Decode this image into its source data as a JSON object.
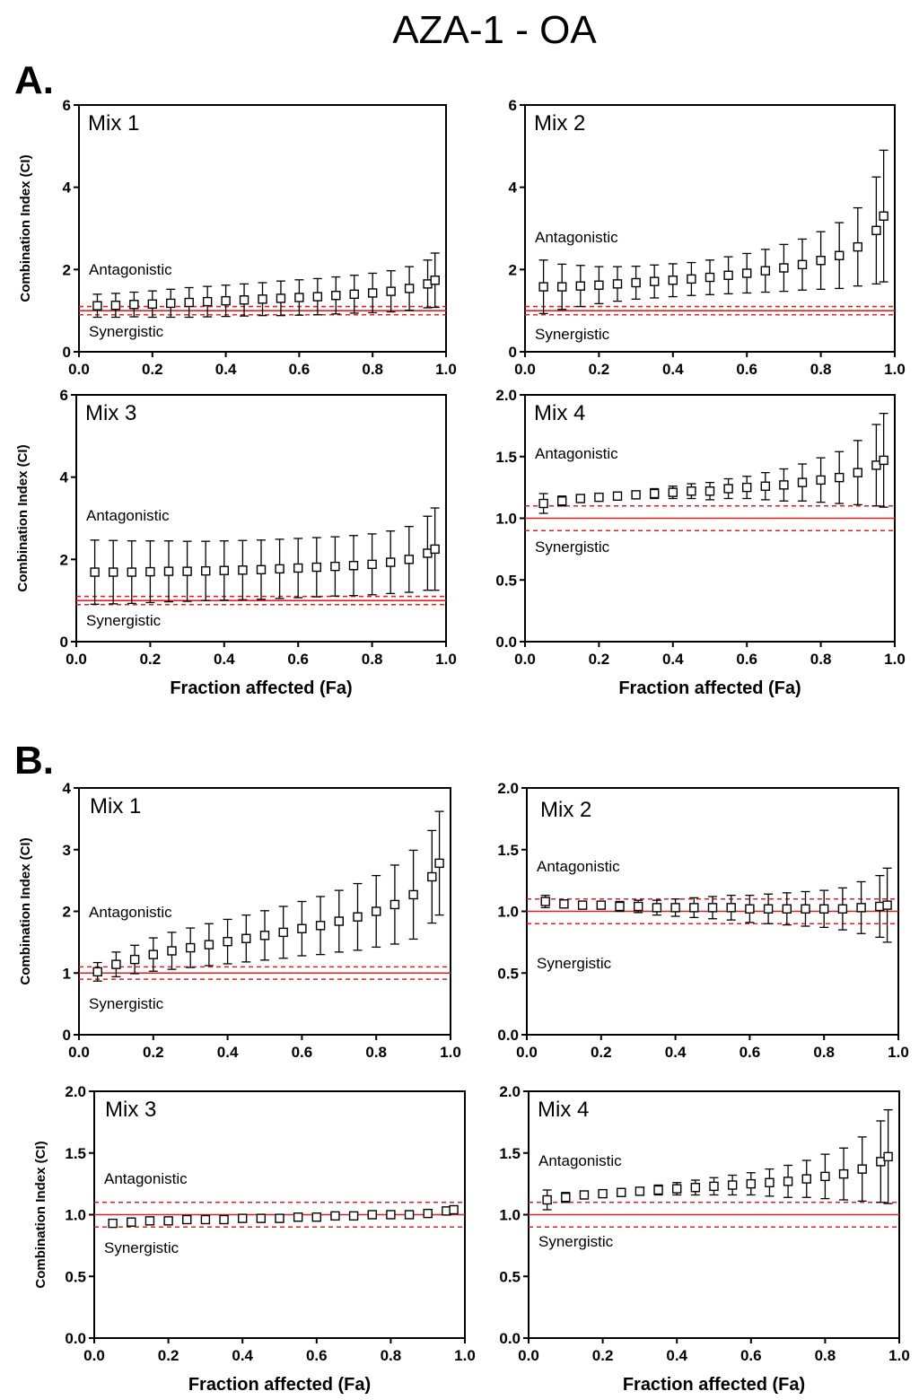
{
  "figure": {
    "title": "AZA-1 - OA",
    "section_a_label": "A.",
    "section_b_label": "B."
  },
  "colors": {
    "reference_line": "#e02020",
    "axis": "#000000",
    "marker_fill": "#ffffff"
  },
  "chart_data": [
    {
      "id": "A1",
      "section": "A",
      "type": "scatter",
      "title": "Mix 1",
      "xlabel": "",
      "ylabel": "Combination Index (CI)",
      "xlim": [
        0,
        1.0
      ],
      "ylim": [
        0,
        6
      ],
      "xticks": [
        "0.0",
        "0.2",
        "0.4",
        "0.6",
        "0.8",
        "1.0"
      ],
      "yticks": [
        "0",
        "2",
        "4",
        "6"
      ],
      "ytick_values": [
        0,
        2,
        4,
        6
      ],
      "antagonistic_label": "Antagonistic",
      "synergistic_label": "Synergistic",
      "reference_lines": {
        "additive": 1.0,
        "lower": 0.9,
        "upper": 1.1
      },
      "x": [
        0.05,
        0.1,
        0.15,
        0.2,
        0.25,
        0.3,
        0.35,
        0.4,
        0.45,
        0.5,
        0.55,
        0.6,
        0.65,
        0.7,
        0.75,
        0.8,
        0.85,
        0.9,
        0.95,
        0.97
      ],
      "y": [
        1.12,
        1.13,
        1.15,
        1.16,
        1.18,
        1.2,
        1.22,
        1.24,
        1.26,
        1.28,
        1.3,
        1.32,
        1.34,
        1.37,
        1.4,
        1.43,
        1.47,
        1.54,
        1.65,
        1.74
      ],
      "error": [
        0.28,
        0.29,
        0.3,
        0.32,
        0.34,
        0.36,
        0.37,
        0.38,
        0.39,
        0.4,
        0.42,
        0.43,
        0.44,
        0.45,
        0.46,
        0.48,
        0.5,
        0.53,
        0.58,
        0.66
      ]
    },
    {
      "id": "A2",
      "section": "A",
      "type": "scatter",
      "title": "Mix 2",
      "xlabel": "",
      "ylabel": "",
      "xlim": [
        0,
        1.0
      ],
      "ylim": [
        0,
        6
      ],
      "xticks": [
        "0.0",
        "0.2",
        "0.4",
        "0.6",
        "0.8",
        "1.0"
      ],
      "yticks": [
        "0",
        "2",
        "4",
        "6"
      ],
      "ytick_values": [
        0,
        2,
        4,
        6
      ],
      "antagonistic_label": "Antagonistic",
      "synergistic_label": "Synergistic",
      "reference_lines": {
        "additive": 1.0,
        "lower": 0.9,
        "upper": 1.1
      },
      "x": [
        0.05,
        0.1,
        0.15,
        0.2,
        0.25,
        0.3,
        0.35,
        0.4,
        0.45,
        0.5,
        0.55,
        0.6,
        0.65,
        0.7,
        0.75,
        0.8,
        0.85,
        0.9,
        0.95,
        0.97
      ],
      "y": [
        1.58,
        1.58,
        1.6,
        1.62,
        1.65,
        1.68,
        1.71,
        1.74,
        1.77,
        1.81,
        1.86,
        1.91,
        1.97,
        2.04,
        2.12,
        2.22,
        2.34,
        2.55,
        2.95,
        3.3
      ],
      "error": [
        0.65,
        0.55,
        0.5,
        0.45,
        0.42,
        0.4,
        0.4,
        0.4,
        0.4,
        0.42,
        0.45,
        0.48,
        0.52,
        0.57,
        0.62,
        0.7,
        0.8,
        0.95,
        1.3,
        1.6
      ]
    },
    {
      "id": "A3",
      "section": "A",
      "type": "scatter",
      "title": "Mix 3",
      "xlabel": "Fraction affected (Fa)",
      "ylabel": "Combination Index (CI)",
      "xlim": [
        0,
        1.0
      ],
      "ylim": [
        0,
        6
      ],
      "xticks": [
        "0.0",
        "0.2",
        "0.4",
        "0.6",
        "0.8",
        "1.0"
      ],
      "yticks": [
        "0",
        "2",
        "4",
        "6"
      ],
      "ytick_values": [
        0,
        2,
        4,
        6
      ],
      "antagonistic_label": "Antagonistic",
      "synergistic_label": "Synergistic",
      "reference_lines": {
        "additive": 1.0,
        "lower": 0.9,
        "upper": 1.1
      },
      "x": [
        0.05,
        0.1,
        0.15,
        0.2,
        0.25,
        0.3,
        0.35,
        0.4,
        0.45,
        0.5,
        0.55,
        0.6,
        0.65,
        0.7,
        0.75,
        0.8,
        0.85,
        0.9,
        0.95,
        0.97
      ],
      "y": [
        1.69,
        1.69,
        1.69,
        1.7,
        1.71,
        1.71,
        1.72,
        1.73,
        1.74,
        1.75,
        1.77,
        1.79,
        1.81,
        1.83,
        1.85,
        1.88,
        1.93,
        2.0,
        2.15,
        2.25
      ],
      "error": [
        0.78,
        0.77,
        0.76,
        0.75,
        0.74,
        0.73,
        0.72,
        0.72,
        0.72,
        0.72,
        0.72,
        0.72,
        0.72,
        0.72,
        0.73,
        0.74,
        0.76,
        0.8,
        0.9,
        1.0
      ]
    },
    {
      "id": "A4",
      "section": "A",
      "type": "scatter",
      "title": "Mix 4",
      "xlabel": "Fraction affected (Fa)",
      "ylabel": "",
      "xlim": [
        0,
        1.0
      ],
      "ylim": [
        0,
        2.0
      ],
      "xticks": [
        "0.0",
        "0.2",
        "0.4",
        "0.6",
        "0.8",
        "1.0"
      ],
      "yticks": [
        "0.0",
        "0.5",
        "1.0",
        "1.5",
        "2.0"
      ],
      "ytick_values": [
        0,
        0.5,
        1.0,
        1.5,
        2.0
      ],
      "antagonistic_label": "Antagonistic",
      "synergistic_label": "Synergistic",
      "reference_lines": {
        "additive": 1.0,
        "lower": 0.9,
        "upper": 1.1
      },
      "x": [
        0.05,
        0.1,
        0.15,
        0.2,
        0.25,
        0.3,
        0.35,
        0.4,
        0.45,
        0.5,
        0.55,
        0.6,
        0.65,
        0.7,
        0.75,
        0.8,
        0.85,
        0.9,
        0.95,
        0.97
      ],
      "y": [
        1.12,
        1.14,
        1.16,
        1.17,
        1.18,
        1.19,
        1.2,
        1.21,
        1.22,
        1.22,
        1.24,
        1.25,
        1.26,
        1.27,
        1.29,
        1.31,
        1.33,
        1.37,
        1.43,
        1.47
      ],
      "error": [
        0.08,
        0.04,
        0.02,
        0.02,
        0.02,
        0.03,
        0.04,
        0.05,
        0.06,
        0.07,
        0.08,
        0.09,
        0.11,
        0.13,
        0.15,
        0.18,
        0.21,
        0.26,
        0.33,
        0.38
      ]
    },
    {
      "id": "B1",
      "section": "B",
      "type": "scatter",
      "title": "Mix 1",
      "xlabel": "",
      "ylabel": "Combination Index (CI)",
      "xlim": [
        0,
        1.0
      ],
      "ylim": [
        0,
        4
      ],
      "xticks": [
        "0.0",
        "0.2",
        "0.4",
        "0.6",
        "0.8",
        "1.0"
      ],
      "yticks": [
        "0",
        "1",
        "2",
        "3",
        "4"
      ],
      "ytick_values": [
        0,
        1,
        2,
        3,
        4
      ],
      "antagonistic_label": "Antagonistic",
      "synergistic_label": "Synergistic",
      "reference_lines": {
        "additive": 1.0,
        "lower": 0.9,
        "upper": 1.1
      },
      "x": [
        0.05,
        0.1,
        0.15,
        0.2,
        0.25,
        0.3,
        0.35,
        0.4,
        0.45,
        0.5,
        0.55,
        0.6,
        0.65,
        0.7,
        0.75,
        0.8,
        0.85,
        0.9,
        0.95,
        0.97
      ],
      "y": [
        1.02,
        1.14,
        1.22,
        1.3,
        1.36,
        1.41,
        1.46,
        1.51,
        1.56,
        1.61,
        1.66,
        1.72,
        1.77,
        1.84,
        1.91,
        2.0,
        2.11,
        2.27,
        2.56,
        2.78
      ],
      "error": [
        0.15,
        0.2,
        0.23,
        0.27,
        0.3,
        0.32,
        0.34,
        0.36,
        0.38,
        0.4,
        0.42,
        0.44,
        0.47,
        0.5,
        0.54,
        0.58,
        0.64,
        0.72,
        0.75,
        0.84
      ]
    },
    {
      "id": "B2",
      "section": "B",
      "type": "scatter",
      "title": "Mix 2",
      "xlabel": "",
      "ylabel": "",
      "xlim": [
        0,
        1.0
      ],
      "ylim": [
        0,
        2.0
      ],
      "xticks": [
        "0.0",
        "0.2",
        "0.4",
        "0.6",
        "0.8",
        "1.0"
      ],
      "yticks": [
        "0.0",
        "0.5",
        "1.0",
        "1.5",
        "2.0"
      ],
      "ytick_values": [
        0,
        0.5,
        1.0,
        1.5,
        2.0
      ],
      "antagonistic_label": "Antagonistic",
      "synergistic_label": "Synergistic",
      "reference_lines": {
        "additive": 1.0,
        "lower": 0.9,
        "upper": 1.1
      },
      "x": [
        0.05,
        0.1,
        0.15,
        0.2,
        0.25,
        0.3,
        0.35,
        0.4,
        0.45,
        0.5,
        0.55,
        0.6,
        0.65,
        0.7,
        0.75,
        0.8,
        0.85,
        0.9,
        0.95,
        0.97
      ],
      "y": [
        1.08,
        1.06,
        1.05,
        1.05,
        1.04,
        1.04,
        1.03,
        1.03,
        1.03,
        1.03,
        1.03,
        1.02,
        1.02,
        1.02,
        1.02,
        1.02,
        1.02,
        1.03,
        1.04,
        1.05
      ],
      "error": [
        0.05,
        0.03,
        0.02,
        0.03,
        0.04,
        0.05,
        0.06,
        0.07,
        0.08,
        0.09,
        0.1,
        0.11,
        0.12,
        0.13,
        0.14,
        0.15,
        0.17,
        0.21,
        0.25,
        0.3
      ]
    },
    {
      "id": "B3",
      "section": "B",
      "type": "scatter",
      "title": "Mix 3",
      "xlabel": "Fraction affected (Fa)",
      "ylabel": "Combination Index (CI)",
      "xlim": [
        0,
        1.0
      ],
      "ylim": [
        0,
        2.0
      ],
      "xticks": [
        "0.0",
        "0.2",
        "0.4",
        "0.6",
        "0.8",
        "1.0"
      ],
      "yticks": [
        "0.0",
        "0.5",
        "1.0",
        "1.5",
        "2.0"
      ],
      "ytick_values": [
        0,
        0.5,
        1.0,
        1.5,
        2.0
      ],
      "antagonistic_label": "Antagonistic",
      "synergistic_label": "Synergistic",
      "reference_lines": {
        "additive": 1.0,
        "lower": 0.9,
        "upper": 1.1
      },
      "x": [
        0.05,
        0.1,
        0.15,
        0.2,
        0.25,
        0.3,
        0.35,
        0.4,
        0.45,
        0.5,
        0.55,
        0.6,
        0.65,
        0.7,
        0.75,
        0.8,
        0.85,
        0.9,
        0.95,
        0.97
      ],
      "y": [
        0.93,
        0.94,
        0.95,
        0.95,
        0.96,
        0.96,
        0.96,
        0.97,
        0.97,
        0.97,
        0.98,
        0.98,
        0.99,
        0.99,
        1.0,
        1.0,
        1.0,
        1.01,
        1.03,
        1.04
      ],
      "error": [
        0.005,
        0.005,
        0.005,
        0.005,
        0.005,
        0.005,
        0.005,
        0.005,
        0.005,
        0.005,
        0.005,
        0.005,
        0.005,
        0.005,
        0.005,
        0.005,
        0.005,
        0.005,
        0.01,
        0.01
      ]
    },
    {
      "id": "B4",
      "section": "B",
      "type": "scatter",
      "title": "Mix 4",
      "xlabel": "Fraction affected (Fa)",
      "ylabel": "",
      "xlim": [
        0,
        1.0
      ],
      "ylim": [
        0,
        2.0
      ],
      "xticks": [
        "0.0",
        "0.2",
        "0.4",
        "0.6",
        "0.8",
        "1.0"
      ],
      "yticks": [
        "0.0",
        "0.5",
        "1.0",
        "1.5",
        "2.0"
      ],
      "ytick_values": [
        0,
        0.5,
        1.0,
        1.5,
        2.0
      ],
      "antagonistic_label": "Antagonistic",
      "synergistic_label": "Synergistic",
      "reference_lines": {
        "additive": 1.0,
        "lower": 0.9,
        "upper": 1.1
      },
      "x": [
        0.05,
        0.1,
        0.15,
        0.2,
        0.25,
        0.3,
        0.35,
        0.4,
        0.45,
        0.5,
        0.55,
        0.6,
        0.65,
        0.7,
        0.75,
        0.8,
        0.85,
        0.9,
        0.95,
        0.97
      ],
      "y": [
        1.12,
        1.14,
        1.16,
        1.17,
        1.18,
        1.19,
        1.2,
        1.21,
        1.22,
        1.23,
        1.24,
        1.25,
        1.26,
        1.27,
        1.29,
        1.31,
        1.33,
        1.37,
        1.43,
        1.47
      ],
      "error": [
        0.08,
        0.04,
        0.02,
        0.02,
        0.02,
        0.03,
        0.04,
        0.05,
        0.06,
        0.07,
        0.08,
        0.09,
        0.11,
        0.13,
        0.15,
        0.18,
        0.21,
        0.26,
        0.33,
        0.38
      ]
    }
  ]
}
